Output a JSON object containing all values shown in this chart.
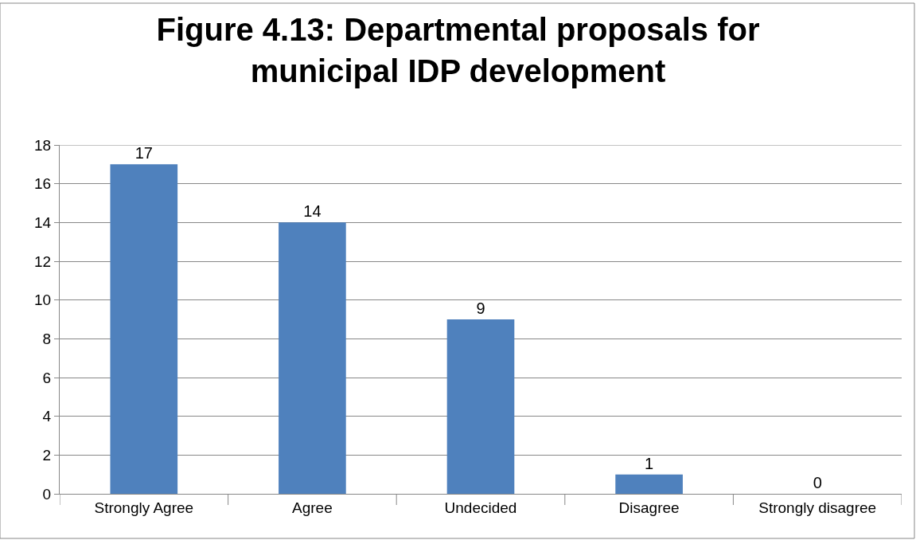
{
  "chart_data": {
    "type": "bar",
    "title": "Figure 4.13: Departmental proposals for\nmunicipal IDP development",
    "categories": [
      "Strongly Agree",
      "Agree",
      "Undecided",
      "Disagree",
      "Strongly disagree"
    ],
    "values": [
      17,
      14,
      9,
      1,
      0
    ],
    "color": "#4f81bd",
    "ylim": [
      0,
      18
    ],
    "yticks": [
      0,
      2,
      4,
      6,
      8,
      10,
      12,
      14,
      16,
      18
    ],
    "grid": "y",
    "data_labels": true,
    "legend": false
  }
}
